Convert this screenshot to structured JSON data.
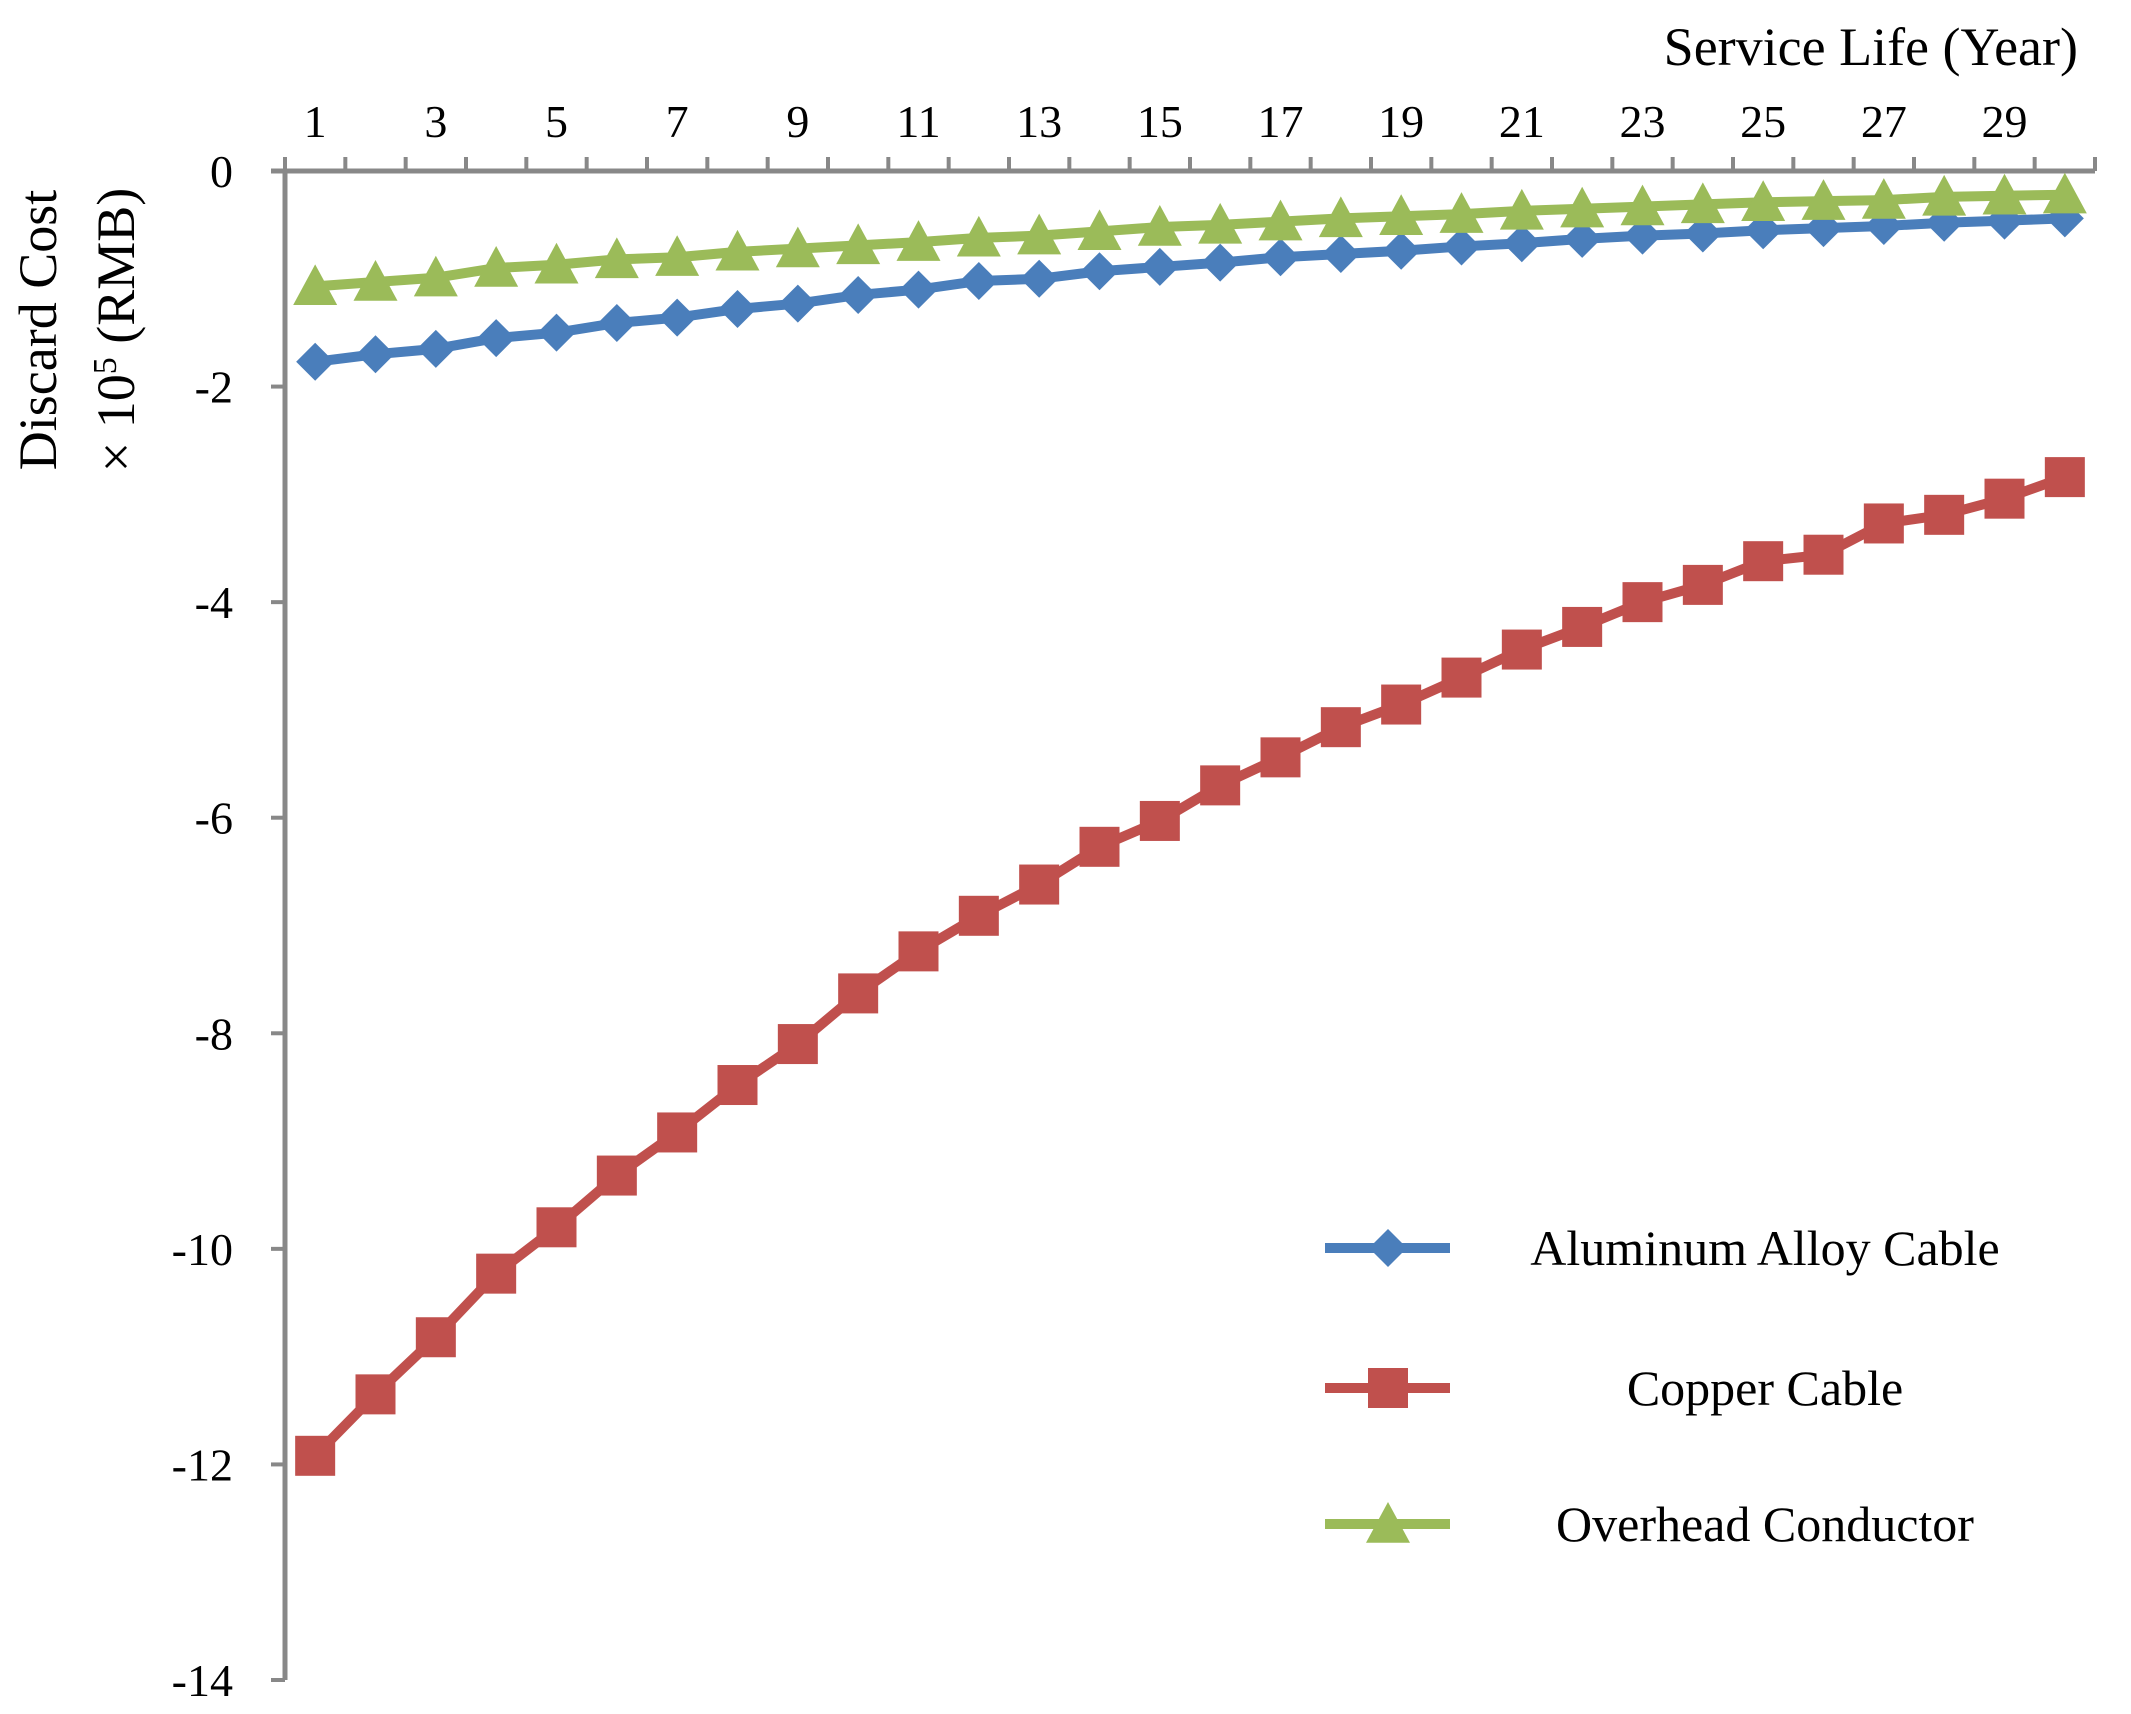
{
  "chart_data": {
    "type": "line",
    "title": "",
    "xlabel": "Service Life (Year)",
    "ylabel_line1": "Discard Cost",
    "ylabel_line2_prefix": "× 10",
    "ylabel_line2_exponent": "5",
    "ylabel_line2_suffix": " (RMB)",
    "x_axis_position": "top",
    "xlim": [
      0.5,
      30.5
    ],
    "ylim": [
      -14,
      0
    ],
    "y_ticks": [
      0,
      -2,
      -4,
      -6,
      -8,
      -10,
      -12,
      -14
    ],
    "x_tick_labels": [
      1,
      3,
      5,
      7,
      9,
      11,
      13,
      15,
      17,
      19,
      21,
      23,
      25,
      27,
      29
    ],
    "grid": false,
    "legend_position": "bottom-right",
    "x": [
      1,
      2,
      3,
      4,
      5,
      6,
      7,
      8,
      9,
      10,
      11,
      12,
      13,
      14,
      15,
      16,
      17,
      18,
      19,
      20,
      21,
      22,
      23,
      24,
      25,
      26,
      27,
      28,
      29,
      30
    ],
    "series": [
      {
        "name": "Aluminum Alloy Cable",
        "color": "#4A7EBB",
        "marker": "diamond",
        "values": [
          -1.77,
          -1.7,
          -1.65,
          -1.55,
          -1.5,
          -1.41,
          -1.36,
          -1.28,
          -1.23,
          -1.15,
          -1.1,
          -1.02,
          -1.0,
          -0.93,
          -0.89,
          -0.85,
          -0.8,
          -0.77,
          -0.74,
          -0.7,
          -0.67,
          -0.63,
          -0.6,
          -0.58,
          -0.55,
          -0.53,
          -0.51,
          -0.48,
          -0.46,
          -0.44
        ]
      },
      {
        "name": "Copper Cable",
        "color": "#C0504D",
        "marker": "square",
        "values": [
          -11.92,
          -11.35,
          -10.82,
          -10.23,
          -9.8,
          -9.32,
          -8.92,
          -8.48,
          -8.1,
          -7.63,
          -7.24,
          -6.91,
          -6.62,
          -6.27,
          -6.03,
          -5.7,
          -5.44,
          -5.16,
          -4.95,
          -4.7,
          -4.44,
          -4.23,
          -4.0,
          -3.84,
          -3.62,
          -3.56,
          -3.27,
          -3.19,
          -3.04,
          -2.84
        ]
      },
      {
        "name": "Overhead Conductor",
        "color": "#9BBB59",
        "marker": "triangle",
        "values": [
          -1.07,
          -1.03,
          -0.99,
          -0.9,
          -0.87,
          -0.82,
          -0.8,
          -0.75,
          -0.72,
          -0.69,
          -0.66,
          -0.62,
          -0.6,
          -0.56,
          -0.52,
          -0.5,
          -0.47,
          -0.44,
          -0.42,
          -0.4,
          -0.37,
          -0.35,
          -0.33,
          -0.31,
          -0.29,
          -0.28,
          -0.27,
          -0.24,
          -0.23,
          -0.22
        ]
      }
    ]
  }
}
